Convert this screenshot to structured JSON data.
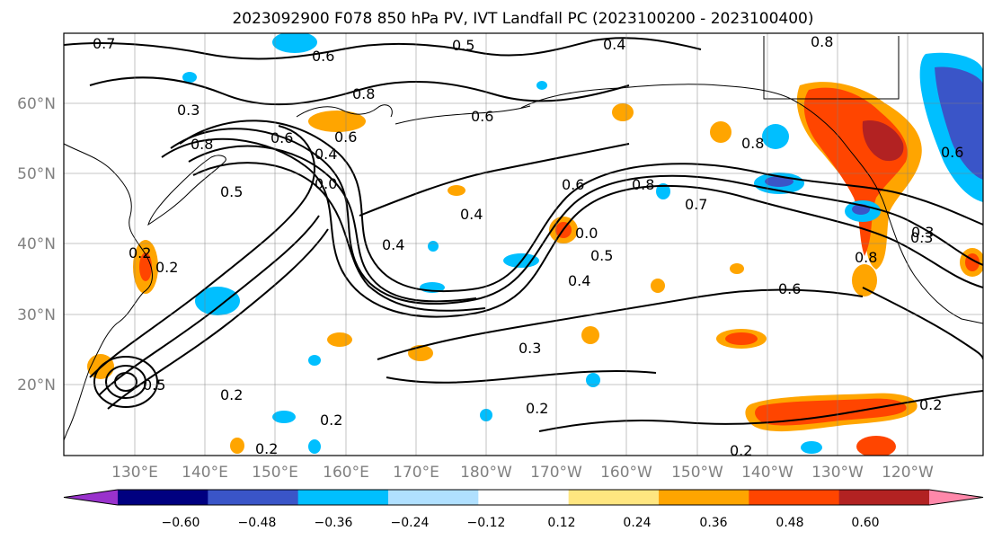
{
  "title": "2023092900 F078 850 hPa PV, IVT Landfall PC (2023100200 - 2023100400)",
  "axes": {
    "lat_labels": [
      "60°N",
      "50°N",
      "40°N",
      "30°N",
      "20°N"
    ],
    "lon_labels": [
      "130°E",
      "140°E",
      "150°E",
      "160°E",
      "170°E",
      "180°W",
      "170°W",
      "160°W",
      "150°W",
      "140°W",
      "130°W",
      "120°W"
    ]
  },
  "colorbar": {
    "tick_labels": [
      "−0.60",
      "−0.48",
      "−0.36",
      "−0.24",
      "−0.12",
      "0.12",
      "0.24",
      "0.36",
      "0.48",
      "0.60"
    ],
    "colors": [
      "#9932cc",
      "#000080",
      "#3a55c8",
      "#00bfff",
      "#b0e0ff",
      "#ffffff",
      "#ffe680",
      "#ffa500",
      "#ff4500",
      "#b22222",
      "#ff88aa"
    ]
  },
  "contour_labels": [
    {
      "text": "0.7"
    },
    {
      "text": "0.6"
    },
    {
      "text": "0.3"
    },
    {
      "text": "0.6"
    },
    {
      "text": "0.5"
    },
    {
      "text": "0.4"
    },
    {
      "text": "0.8"
    },
    {
      "text": "0.6"
    },
    {
      "text": "0.3"
    },
    {
      "text": "0.8"
    },
    {
      "text": "0.5"
    },
    {
      "text": "0.6"
    },
    {
      "text": "0.4"
    },
    {
      "text": "0.0"
    },
    {
      "text": "0.4"
    },
    {
      "text": "0.2"
    },
    {
      "text": "0.2"
    },
    {
      "text": "0.4"
    },
    {
      "text": "0.6"
    },
    {
      "text": "0.8"
    },
    {
      "text": "0.7"
    },
    {
      "text": "0.0"
    },
    {
      "text": "0.5"
    },
    {
      "text": "0.4"
    },
    {
      "text": "0.6"
    },
    {
      "text": "0.3"
    },
    {
      "text": "0.2"
    },
    {
      "text": "0.2"
    },
    {
      "text": "0.2"
    },
    {
      "text": "0.2"
    },
    {
      "text": "0.2"
    },
    {
      "text": "0.8"
    },
    {
      "text": "0.6"
    },
    {
      "text": "0.2"
    },
    {
      "text": "0.3"
    },
    {
      "text": "0.5"
    },
    {
      "text": "0.8"
    },
    {
      "text": "0.8"
    }
  ]
}
